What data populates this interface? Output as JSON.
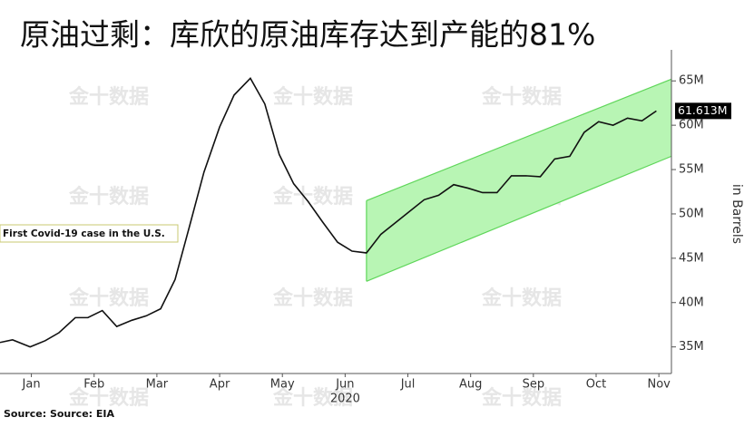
{
  "chart_data": {
    "type": "line",
    "title": "原油过剩：库欣的原油库存达到产能的81%",
    "y_axis_label": "in Barrels",
    "x_axis_label": "2020",
    "source": "Source: Source: EIA",
    "annotation": "First Covid-19 case in the U.S.",
    "watermark": "金十数据",
    "xlim": [
      0,
      10.7
    ],
    "xticks": [
      {
        "value": 0.5,
        "label": "Jan"
      },
      {
        "value": 1.5,
        "label": "Feb"
      },
      {
        "value": 2.5,
        "label": "Mar"
      },
      {
        "value": 3.5,
        "label": "Apr"
      },
      {
        "value": 4.5,
        "label": "May"
      },
      {
        "value": 5.5,
        "label": "Jun"
      },
      {
        "value": 6.5,
        "label": "Jul"
      },
      {
        "value": 7.5,
        "label": "Aug"
      },
      {
        "value": 8.5,
        "label": "Sep"
      },
      {
        "value": 9.5,
        "label": "Oct"
      },
      {
        "value": 10.5,
        "label": "Nov"
      }
    ],
    "ylim": [
      32,
      68.5
    ],
    "yticks": [
      {
        "value": 35,
        "label": "35M"
      },
      {
        "value": 40,
        "label": "40M"
      },
      {
        "value": 45,
        "label": "45M"
      },
      {
        "value": 50,
        "label": "50M"
      },
      {
        "value": 55,
        "label": "55M"
      },
      {
        "value": 60,
        "label": "60M"
      },
      {
        "value": 65,
        "label": "65M"
      }
    ],
    "x": [
      0,
      0.2,
      0.48,
      0.72,
      0.94,
      1.2,
      1.4,
      1.63,
      1.86,
      2.1,
      2.33,
      2.56,
      2.79,
      3.02,
      3.25,
      3.5,
      3.73,
      3.99,
      4.22,
      4.45,
      4.68,
      4.91,
      5.14,
      5.38,
      5.61,
      5.84,
      6.07,
      6.3,
      6.53,
      6.76,
      6.99,
      7.23,
      7.46,
      7.69,
      7.92,
      8.15,
      8.38,
      8.61,
      8.84,
      9.08,
      9.31,
      9.54,
      9.77,
      10.0,
      10.23,
      10.46
    ],
    "series": [
      {
        "color": "#111111",
        "values": [
          35.5,
          35.8,
          35.0,
          35.7,
          36.6,
          38.3,
          38.3,
          39.1,
          37.3,
          38.0,
          38.5,
          39.3,
          42.6,
          48.6,
          54.7,
          59.8,
          63.4,
          65.3,
          62.4,
          56.7,
          53.4,
          51.4,
          49.1,
          46.8,
          45.8,
          45.6,
          47.7,
          49.0,
          50.3,
          51.6,
          52.1,
          53.3,
          52.9,
          52.4,
          52.4,
          54.3,
          54.3,
          54.2,
          56.2,
          56.5,
          59.2,
          60.4,
          60.0,
          60.8,
          60.5,
          61.613
        ],
        "value_labels": [
          null,
          null,
          null,
          null,
          null,
          null,
          null,
          null,
          null,
          null,
          null,
          null,
          null,
          null,
          null,
          null,
          null,
          null,
          null,
          null,
          null,
          null,
          null,
          null,
          null,
          null,
          null,
          null,
          null,
          null,
          null,
          null,
          null,
          null,
          null,
          null,
          null,
          null,
          null,
          null,
          null,
          null,
          null,
          null,
          null,
          "61.613M"
        ]
      }
    ],
    "channel": {
      "x": [
        5.84,
        10.7
      ],
      "upper": [
        51.5,
        65.2
      ],
      "lower": [
        42.4,
        56.5
      ],
      "fill": "#b8f5b4",
      "color": "#5fd65a"
    }
  }
}
